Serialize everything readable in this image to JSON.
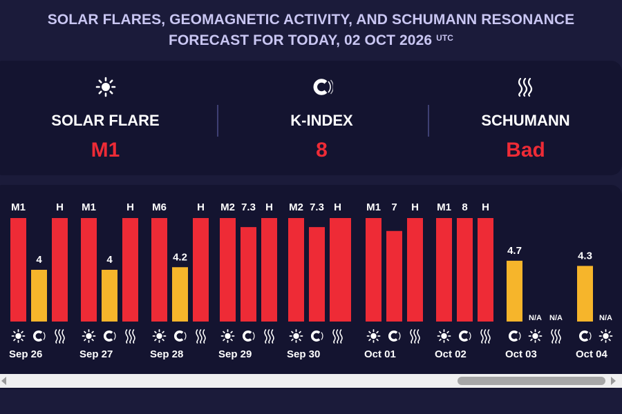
{
  "header": {
    "line1": "SOLAR FLARES, GEOMAGNETIC ACTIVITY, AND SCHUMANN RESONANCE",
    "line2": "FORECAST FOR TODAY, 02 OCT 2026",
    "timezone": "UTC"
  },
  "summary": [
    {
      "icon": "sun-icon",
      "label": "SOLAR FLARE",
      "value": "M1"
    },
    {
      "icon": "magnet-icon",
      "label": "K-INDEX",
      "value": "8"
    },
    {
      "icon": "wave-icon",
      "label": "SCHUMANN",
      "value": "Bad"
    }
  ],
  "colors": {
    "red": "#ee2b36",
    "yellow": "#f6b52b",
    "title": "#c9c6f2"
  },
  "chart_data": {
    "type": "bar",
    "title": "",
    "series_names": [
      "Solar flare",
      "K-index",
      "Schumann"
    ],
    "k_index_range": [
      0,
      8
    ],
    "days": [
      {
        "date": "Sep 26",
        "flare": "M1",
        "k": 4,
        "schumann": "H",
        "k_label": "4",
        "icons": [
          "sun-icon",
          "magnet-icon",
          "wave-icon"
        ]
      },
      {
        "date": "Sep 27",
        "flare": "M1",
        "k": 4,
        "schumann": "H",
        "k_label": "4",
        "icons": [
          "sun-icon",
          "magnet-icon",
          "wave-icon"
        ]
      },
      {
        "date": "Sep 28",
        "flare": "M6",
        "k": 4.2,
        "schumann": "H",
        "k_label": "4.2",
        "icons": [
          "sun-icon",
          "magnet-icon",
          "wave-icon"
        ]
      },
      {
        "date": "Sep 29",
        "flare": "M2",
        "k": 7.3,
        "schumann": "H",
        "k_label": "7.3",
        "icons": [
          "sun-icon",
          "magnet-icon",
          "wave-icon"
        ]
      },
      {
        "date": "Sep 30",
        "flare": "M2",
        "k": 7.3,
        "schumann": "H",
        "k_label": "7.3",
        "icons": [
          "sun-icon",
          "magnet-icon",
          "wave-icon"
        ]
      },
      {
        "date": "Oct 01",
        "flare": "M1",
        "k": 7,
        "schumann": "H",
        "k_label": "7",
        "icons": [
          "sun-icon",
          "magnet-icon",
          "wave-icon"
        ]
      },
      {
        "date": "Oct 02",
        "flare": "M1",
        "k": 8,
        "schumann": "H",
        "k_label": "8",
        "icons": [
          "sun-icon",
          "magnet-icon",
          "wave-icon"
        ]
      },
      {
        "date": "Oct 03",
        "flare": null,
        "k": 4.7,
        "schumann": null,
        "k_label": "4.7",
        "na_label": "N/A",
        "icons": [
          "magnet-icon",
          "sun-icon",
          "wave-icon"
        ]
      },
      {
        "date": "Oct 04",
        "flare": null,
        "k": 4.3,
        "schumann": null,
        "k_label": "4.3",
        "na_label": "N/A",
        "icons": [
          "magnet-icon",
          "sun-icon"
        ]
      }
    ]
  }
}
